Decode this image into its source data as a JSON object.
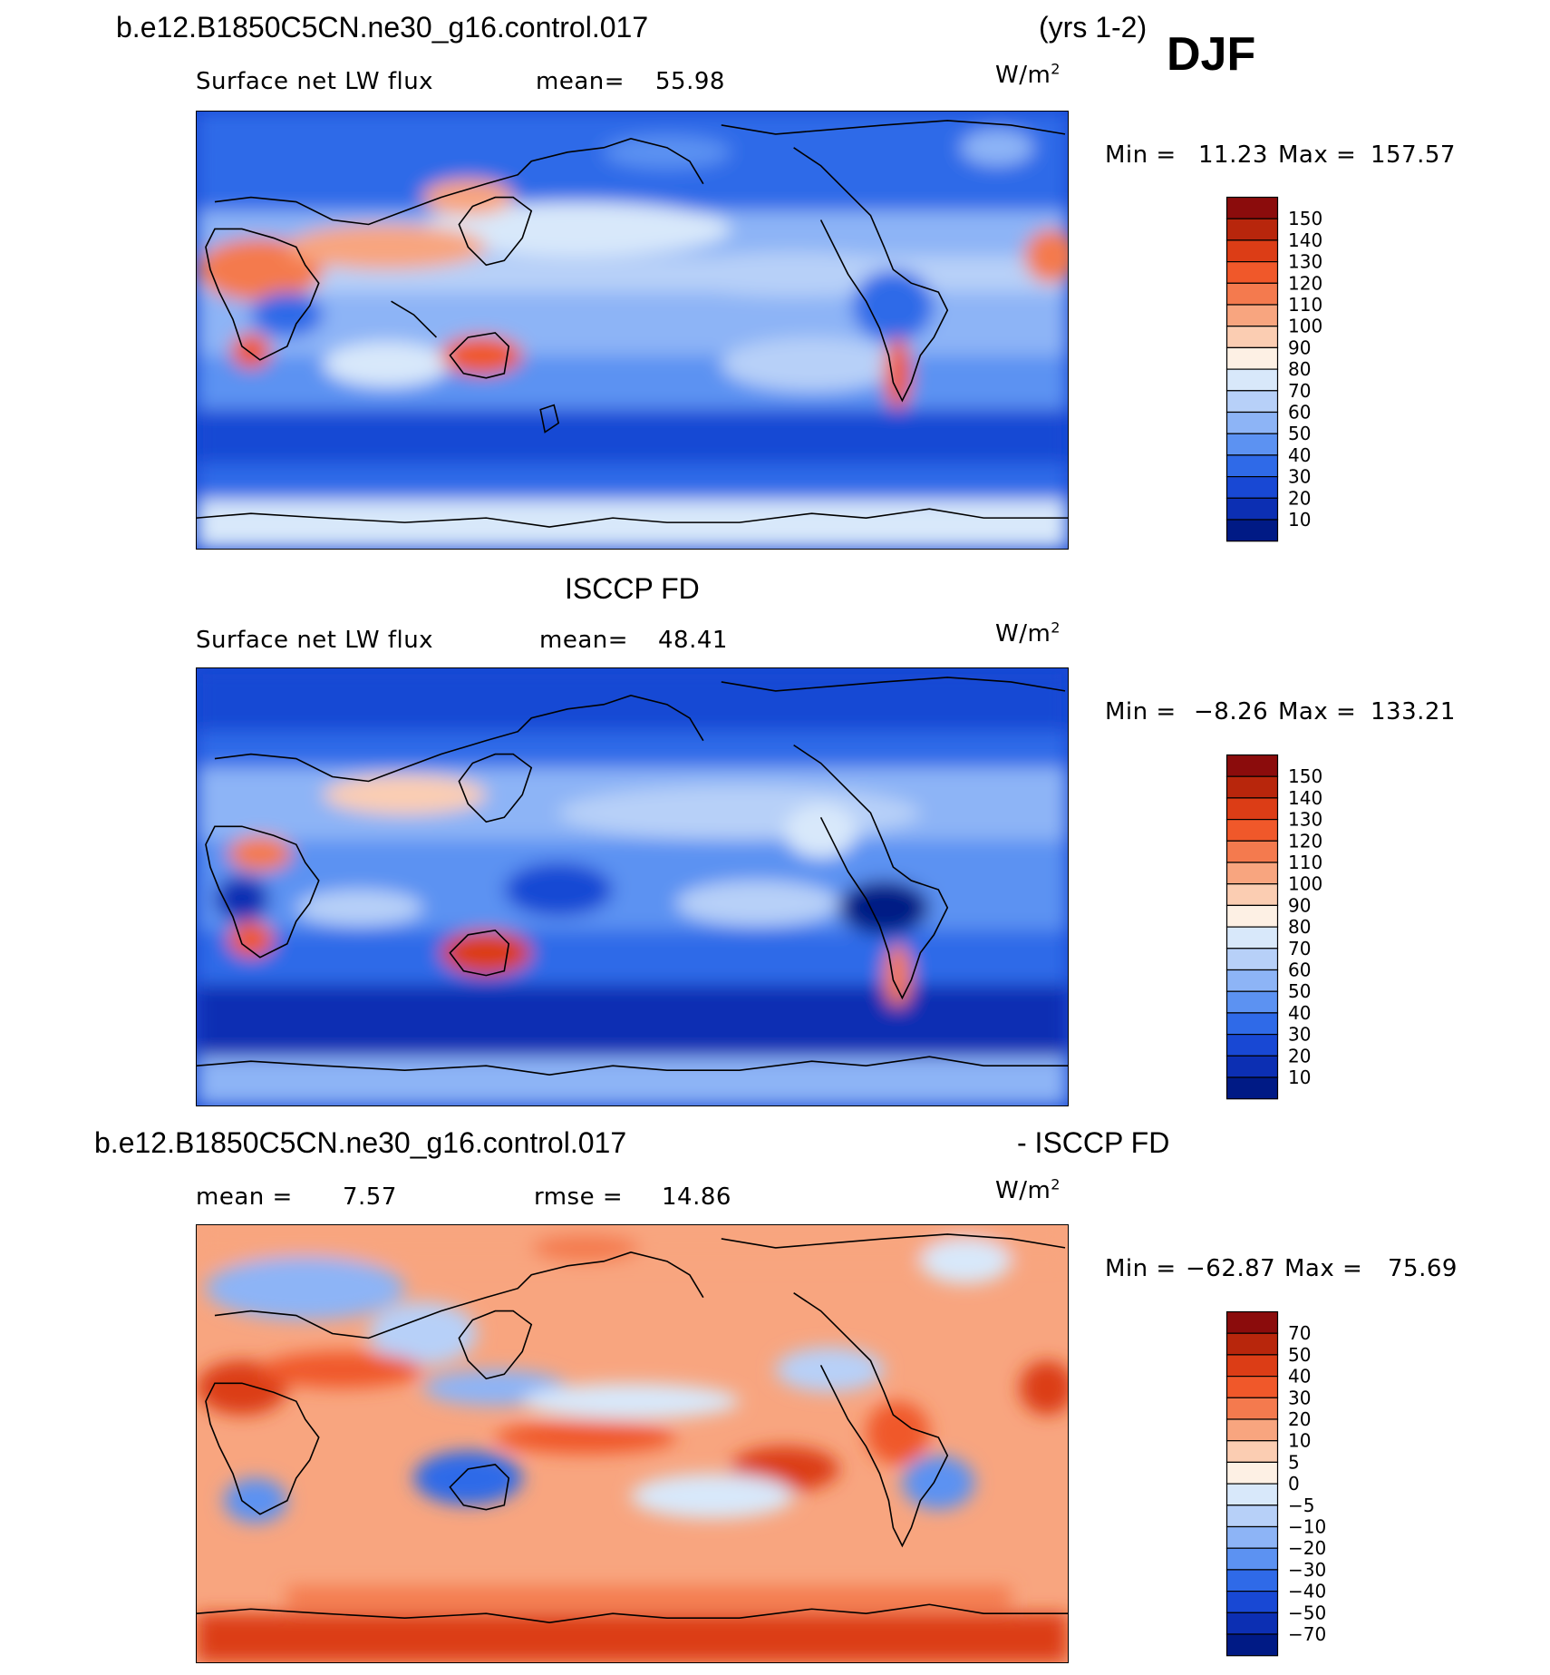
{
  "header": {
    "case_name": "b.e12.B1850C5CN.ne30_g16.control.017",
    "years": "(yrs 1-2)",
    "season": "DJF"
  },
  "chart_data": [
    {
      "type": "heatmap",
      "panel": "model",
      "variable_label": "Surface net LW flux",
      "stat_label": "mean=",
      "stat_value": "55.98",
      "units": "W/m",
      "units_exp": "2",
      "min_label": "Min =",
      "min_value": "11.23",
      "max_label": "Max =",
      "max_value": "157.57",
      "colorbar_levels": [
        "150",
        "140",
        "130",
        "120",
        "110",
        "100",
        "90",
        "80",
        "70",
        "60",
        "50",
        "40",
        "30",
        "20",
        "10"
      ],
      "colorbar_colors": [
        "#8b0c0c",
        "#b8260c",
        "#dc3d16",
        "#f0582a",
        "#f47a4e",
        "#f8a57f",
        "#fbcdb2",
        "#fdf0e4",
        "#d8e8fa",
        "#b7d0f8",
        "#8db4f6",
        "#5c92f2",
        "#2f6ae8",
        "#1848d4",
        "#0c2fb3",
        "#001a85"
      ]
    },
    {
      "type": "heatmap",
      "panel": "observations",
      "title": "ISCCP FD",
      "variable_label": "Surface net LW flux",
      "stat_label": "mean=",
      "stat_value": "48.41",
      "units": "W/m",
      "units_exp": "2",
      "min_label": "Min =",
      "min_value": "−8.26",
      "max_label": "Max =",
      "max_value": "133.21",
      "colorbar_levels": [
        "150",
        "140",
        "130",
        "120",
        "110",
        "100",
        "90",
        "80",
        "70",
        "60",
        "50",
        "40",
        "30",
        "20",
        "10"
      ],
      "colorbar_colors": [
        "#8b0c0c",
        "#b8260c",
        "#dc3d16",
        "#f0582a",
        "#f47a4e",
        "#f8a57f",
        "#fbcdb2",
        "#fdf0e4",
        "#d8e8fa",
        "#b7d0f8",
        "#8db4f6",
        "#5c92f2",
        "#2f6ae8",
        "#1848d4",
        "#0c2fb3",
        "#001a85"
      ]
    },
    {
      "type": "heatmap",
      "panel": "difference",
      "title_left": "b.e12.B1850C5CN.ne30_g16.control.017",
      "title_right": "- ISCCP FD",
      "stat_label": "mean =",
      "stat_value": "7.57",
      "rmse_label": "rmse =",
      "rmse_value": "14.86",
      "units": "W/m",
      "units_exp": "2",
      "min_label": "Min =",
      "min_value": "−62.87",
      "max_label": "Max =",
      "max_value": "75.69",
      "colorbar_levels": [
        "70",
        "50",
        "40",
        "30",
        "20",
        "10",
        "5",
        "0",
        "−5",
        "−10",
        "−20",
        "−30",
        "−40",
        "−50",
        "−70"
      ],
      "colorbar_colors": [
        "#8b0c0c",
        "#b8260c",
        "#dc3d16",
        "#f0582a",
        "#f47a4e",
        "#f8a57f",
        "#fbcdb2",
        "#fdf0e4",
        "#d8e8fa",
        "#b7d0f8",
        "#8db4f6",
        "#5c92f2",
        "#2f6ae8",
        "#1848d4",
        "#0c2fb3",
        "#001a85"
      ]
    }
  ]
}
